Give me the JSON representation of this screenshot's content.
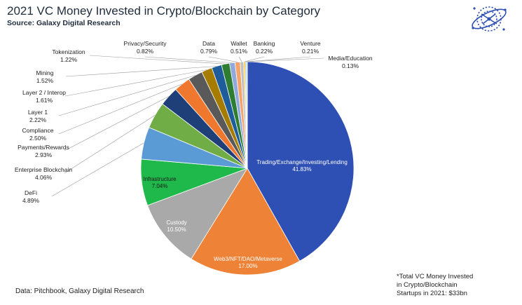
{
  "title": "2021 VC Money Invested in Crypto/Blockchain by Category",
  "subtitle": "Source: Galaxy Digital Research",
  "footer_source": "Data: Pitchbook, Galaxy Digital Research",
  "footnote": [
    "*Total VC Money Invested",
    "in Crypto/Blockchain",
    "Startups in 2021: $33bn"
  ],
  "logo": "galaxy-digital-globe-logo",
  "chart_data": {
    "type": "pie",
    "title": "2021 VC Money Invested in Crypto/Blockchain by Category",
    "subtitle": "Source: Galaxy Digital Research",
    "unit": "%",
    "start_angle_deg": 0,
    "direction": "clockwise",
    "slices": [
      {
        "label": "Trading/Exchange/Investing/Lending",
        "value": 41.83,
        "value_label": "41.83%",
        "color": "#2e4fb4",
        "label_position": "inside",
        "text_color": "#ffffff"
      },
      {
        "label": "Web3/NFT/DAO/Metaverse",
        "value": 17.0,
        "value_label": "17.00%",
        "color": "#ee8236",
        "label_position": "inside",
        "text_color": "#ffffff"
      },
      {
        "label": "Custody",
        "value": 10.5,
        "value_label": "10.50%",
        "color": "#a9a9a9",
        "label_position": "inside",
        "text_color": "#ffffff"
      },
      {
        "label": "Infrastructure",
        "value": 7.04,
        "value_label": "7.04%",
        "color": "#1fb84a",
        "label_position": "inside",
        "text_color": "#1a1a1a"
      },
      {
        "label": "DeFi",
        "value": 4.89,
        "value_label": "4.89%",
        "color": "#5b9bd5",
        "label_position": "outside"
      },
      {
        "label": "Enterprise Blockchain",
        "value": 4.06,
        "value_label": "4.06%",
        "color": "#70ad47",
        "label_position": "outside"
      },
      {
        "label": "Payments/Rewards",
        "value": 2.93,
        "value_label": "2.93%",
        "color": "#1f3f78",
        "label_position": "outside"
      },
      {
        "label": "Compliance",
        "value": 2.5,
        "value_label": "2.50%",
        "color": "#f0782e",
        "label_position": "outside"
      },
      {
        "label": "Layer 1",
        "value": 2.22,
        "value_label": "2.22%",
        "color": "#595959",
        "label_position": "outside"
      },
      {
        "label": "Layer 2 / Interop",
        "value": 1.61,
        "value_label": "1.61%",
        "color": "#a57c00",
        "label_position": "outside"
      },
      {
        "label": "Mining",
        "value": 1.52,
        "value_label": "1.52%",
        "color": "#1f5c9c",
        "label_position": "outside"
      },
      {
        "label": "Tokenization",
        "value": 1.22,
        "value_label": "1.22%",
        "color": "#2e7d32",
        "label_position": "outside"
      },
      {
        "label": "Privacy/Security",
        "value": 0.82,
        "value_label": "0.82%",
        "color": "#8fa9dc",
        "label_position": "outside"
      },
      {
        "label": "Data",
        "value": 0.79,
        "value_label": "0.79%",
        "color": "#f4a46a",
        "label_position": "outside"
      },
      {
        "label": "Wallet",
        "value": 0.51,
        "value_label": "0.51%",
        "color": "#c0c0c0",
        "label_position": "outside"
      },
      {
        "label": "Banking",
        "value": 0.22,
        "value_label": "0.22%",
        "color": "#ffc000",
        "label_position": "outside"
      },
      {
        "label": "Venture",
        "value": 0.21,
        "value_label": "0.21%",
        "color": "#9dc3e6",
        "label_position": "outside"
      },
      {
        "label": "Media/Education",
        "value": 0.13,
        "value_label": "0.13%",
        "color": "#a9d18e",
        "label_position": "outside"
      }
    ],
    "legend": "none"
  }
}
